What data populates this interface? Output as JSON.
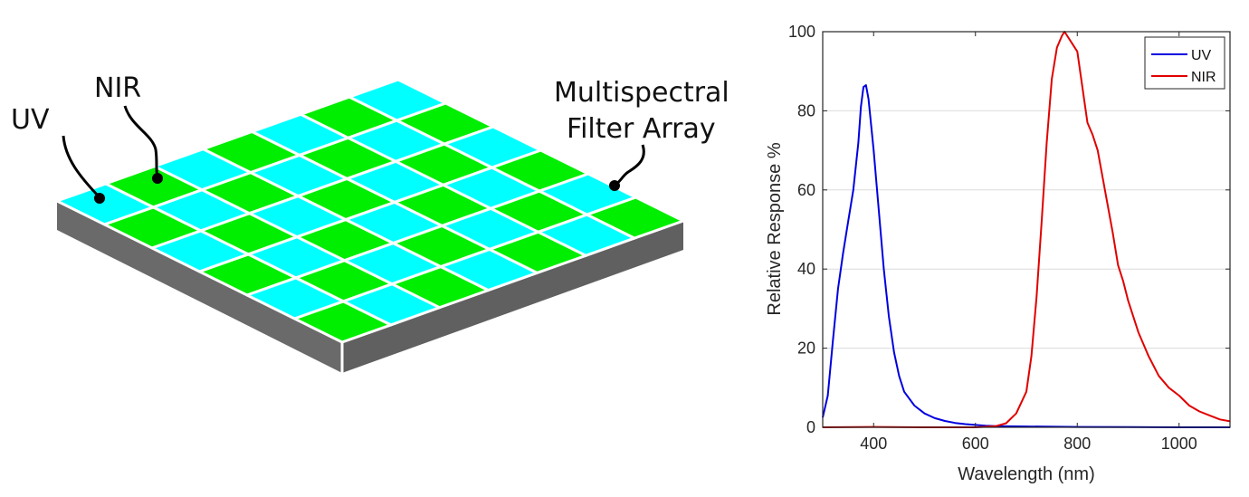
{
  "diagram": {
    "labels": {
      "uv": "UV",
      "nir": "NIR",
      "array_line1": "Multispectral",
      "array_line2": "Filter Array"
    },
    "grid": {
      "rows": 6,
      "cols": 7,
      "pattern": [
        [
          "uv",
          "nir",
          "uv",
          "nir",
          "uv",
          "nir",
          "uv"
        ],
        [
          "nir",
          "uv",
          "nir",
          "uv",
          "nir",
          "uv",
          "nir"
        ],
        [
          "uv",
          "nir",
          "uv",
          "nir",
          "uv",
          "nir",
          "uv"
        ],
        [
          "nir",
          "uv",
          "nir",
          "uv",
          "nir",
          "uv",
          "nir"
        ],
        [
          "uv",
          "nir",
          "uv",
          "nir",
          "uv",
          "nir",
          "uv"
        ],
        [
          "nir",
          "uv",
          "nir",
          "uv",
          "nir",
          "uv",
          "nir"
        ]
      ]
    },
    "colors": {
      "uv": "#00FFFF",
      "nir": "#00EE00",
      "side_left": "#6A6A6A",
      "side_right": "#606060",
      "edge": "#FFFFFF"
    }
  },
  "chart_data": {
    "type": "line",
    "title": "",
    "xlabel": "Wavelength (nm)",
    "ylabel": "Relative Response %",
    "xlim": [
      300,
      1100
    ],
    "ylim": [
      0,
      100
    ],
    "xticks": [
      400,
      600,
      800,
      1000
    ],
    "yticks": [
      0,
      20,
      40,
      60,
      80,
      100
    ],
    "grid": "horizontal",
    "legend_position": "top-right",
    "series": [
      {
        "name": "UV",
        "color": "#0000E0",
        "x": [
          300,
          310,
          320,
          330,
          340,
          350,
          360,
          370,
          375,
          380,
          385,
          390,
          400,
          410,
          420,
          430,
          440,
          450,
          460,
          480,
          500,
          520,
          540,
          560,
          580,
          600,
          620,
          640,
          700,
          800,
          900,
          1000,
          1100
        ],
        "y": [
          2.5,
          8,
          22,
          35,
          44,
          52,
          60,
          72,
          81,
          86,
          86.5,
          83,
          70,
          55,
          40,
          28,
          19,
          13,
          9,
          5.5,
          3.5,
          2.3,
          1.6,
          1.1,
          0.8,
          0.6,
          0.4,
          0.3,
          0.2,
          0.1,
          0.05,
          0,
          0
        ]
      },
      {
        "name": "NIR",
        "color": "#E00000",
        "x": [
          300,
          400,
          500,
          600,
          640,
          660,
          680,
          700,
          710,
          720,
          730,
          740,
          750,
          760,
          770,
          775,
          780,
          790,
          800,
          810,
          820,
          830,
          840,
          850,
          860,
          870,
          880,
          890,
          900,
          920,
          940,
          960,
          980,
          1000,
          1020,
          1040,
          1060,
          1080,
          1100
        ],
        "y": [
          0,
          0.1,
          0,
          0,
          0.3,
          1,
          3.5,
          9,
          18,
          33,
          52,
          72,
          88,
          96,
          99,
          100,
          99,
          97,
          95,
          86,
          77,
          74,
          70,
          63,
          56,
          49,
          41,
          37,
          32,
          24,
          18,
          13,
          10,
          8,
          5.5,
          4,
          3,
          2,
          1.5
        ]
      }
    ]
  }
}
